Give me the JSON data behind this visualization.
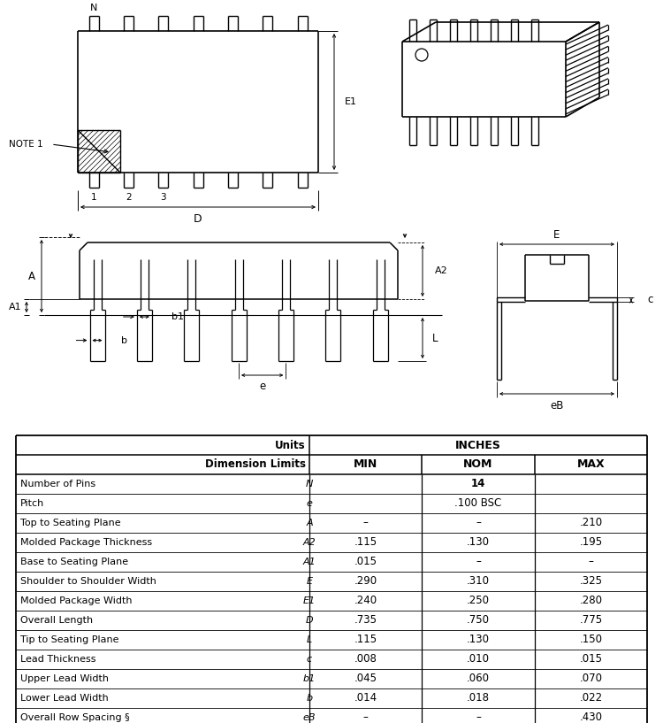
{
  "background_color": "#ffffff",
  "line_color": "#000000",
  "text_color": "#000000",
  "orange_color": "#cc4400",
  "table": {
    "rows": [
      [
        "Number of Pins",
        "N",
        "14",
        "",
        ""
      ],
      [
        "Pitch",
        "e",
        ".100 BSC",
        "",
        ""
      ],
      [
        "Top to Seating Plane",
        "A",
        "–",
        "–",
        ".210"
      ],
      [
        "Molded Package Thickness",
        "A2",
        ".115",
        ".130",
        ".195"
      ],
      [
        "Base to Seating Plane",
        "A1",
        ".015",
        "–",
        "–"
      ],
      [
        "Shoulder to Shoulder Width",
        "E",
        ".290",
        ".310",
        ".325"
      ],
      [
        "Molded Package Width",
        "E1",
        ".240",
        ".250",
        ".280"
      ],
      [
        "Overall Length",
        "D",
        ".735",
        ".750",
        ".775"
      ],
      [
        "Tip to Seating Plane",
        "L",
        ".115",
        ".130",
        ".150"
      ],
      [
        "Lead Thickness",
        "c",
        ".008",
        ".010",
        ".015"
      ],
      [
        "Upper Lead Width",
        "b1",
        ".045",
        ".060",
        ".070"
      ],
      [
        "Lower Lead Width",
        "b",
        ".014",
        ".018",
        ".022"
      ],
      [
        "Overall Row Spacing §",
        "eB",
        "–",
        "–",
        ".430"
      ]
    ]
  }
}
